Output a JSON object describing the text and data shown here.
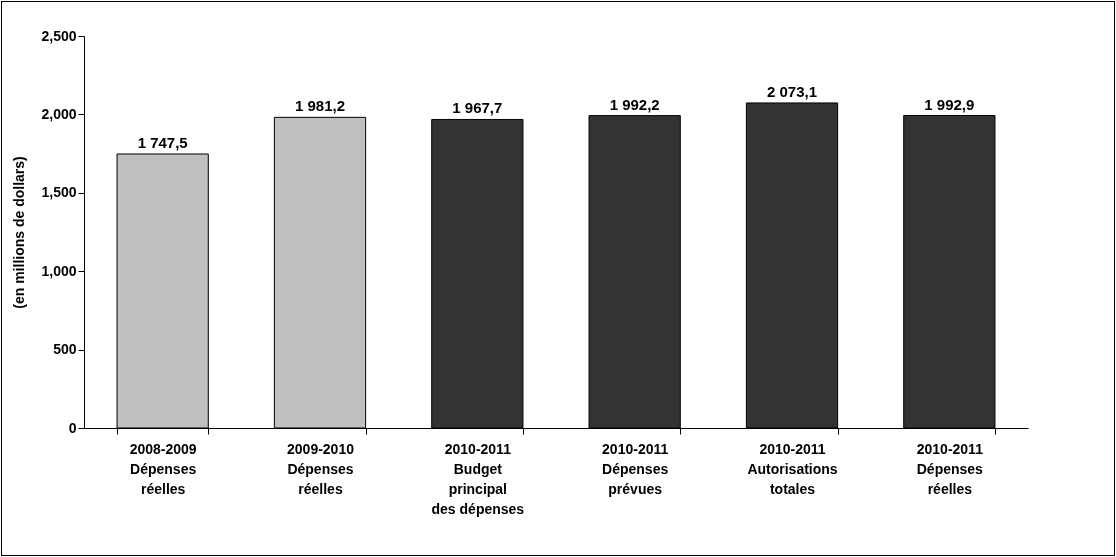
{
  "chart_data": {
    "type": "bar",
    "ylabel": "(en millions de dollars)",
    "categories": [
      "2008-2009\nDépenses\nréelles",
      "2009-2010\nDépenses\nréelles",
      "2010-2011\nBudget\nprincipal\ndes dépenses",
      "2010-2011\nDépenses\nprévues",
      "2010-2011\nAutorisations\ntotales",
      "2010-2011\nDépenses\nréelles"
    ],
    "values": [
      1747.5,
      1981.2,
      1967.7,
      1992.2,
      2073.1,
      1992.9
    ],
    "colors": [
      "#c0c0c0",
      "#c0c0c0",
      "#333333",
      "#333333",
      "#333333",
      "#333333"
    ],
    "value_labels": [
      "1 747,5",
      "1 981,2",
      "1 967,7",
      "1 992,2",
      "2 073,1",
      "1 992,9"
    ],
    "ylim": [
      0,
      2500
    ],
    "yticks": [
      {
        "value": 0,
        "label": "0"
      },
      {
        "value": 500,
        "label": "500"
      },
      {
        "value": 1000,
        "label": "1,000"
      },
      {
        "value": 1500,
        "label": "1,500"
      },
      {
        "value": 2000,
        "label": "2,000"
      },
      {
        "value": 2500,
        "label": "2,500"
      }
    ],
    "grid": false,
    "legend": false
  }
}
